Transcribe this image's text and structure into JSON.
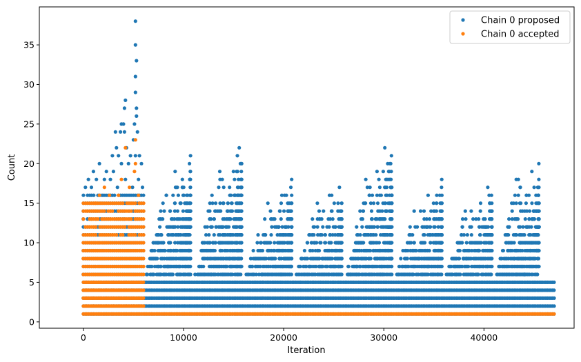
{
  "chart_data": {
    "type": "scatter",
    "xlabel": "Iteration",
    "ylabel": "Count",
    "xlim": [
      -4400,
      49000
    ],
    "ylim": [
      -0.8,
      39.8
    ],
    "xticks": [
      0,
      10000,
      20000,
      30000,
      40000
    ],
    "xtick_labels": [
      "0",
      "10000",
      "20000",
      "30000",
      "40000"
    ],
    "yticks": [
      0,
      5,
      10,
      15,
      20,
      25,
      30,
      35
    ],
    "ytick_labels": [
      "0",
      "5",
      "10",
      "15",
      "20",
      "25",
      "30",
      "35"
    ],
    "grid": false,
    "legend_position": "top-right",
    "series": [
      {
        "name": "Chain 0 proposed",
        "color": "#1f77b4",
        "bands": [
          {
            "x_range": [
              0,
              47000
            ],
            "y_values": [
              1,
              2,
              3,
              4,
              5
            ]
          },
          {
            "x_range": [
              0,
              6000
            ],
            "y_values": [
              6,
              7,
              8,
              9,
              10,
              11,
              12,
              13,
              14,
              15,
              16
            ]
          }
        ],
        "periodic_cycles": [
          {
            "x_range": [
              6000,
              10900
            ],
            "peak": 21
          },
          {
            "x_range": [
              10900,
              16000
            ],
            "peak": 22
          },
          {
            "x_range": [
              16000,
              21000
            ],
            "peak": 18
          },
          {
            "x_range": [
              21000,
              26000
            ],
            "peak": 17
          },
          {
            "x_range": [
              26000,
              31000
            ],
            "peak": 22
          },
          {
            "x_range": [
              31000,
              36000
            ],
            "peak": 18
          },
          {
            "x_range": [
              36000,
              41000
            ],
            "peak": 17
          },
          {
            "x_range": [
              41000,
              45700
            ],
            "peak": 20
          }
        ],
        "outliers": [
          {
            "x": 5200,
            "y": 38
          },
          {
            "x": 5200,
            "y": 35
          },
          {
            "x": 5300,
            "y": 33
          },
          {
            "x": 5200,
            "y": 31
          },
          {
            "x": 5200,
            "y": 29
          },
          {
            "x": 5300,
            "y": 27
          },
          {
            "x": 5300,
            "y": 26
          },
          {
            "x": 4200,
            "y": 28
          },
          {
            "x": 4100,
            "y": 27
          },
          {
            "x": 3800,
            "y": 25
          },
          {
            "x": 4000,
            "y": 25
          },
          {
            "x": 3200,
            "y": 24
          },
          {
            "x": 3700,
            "y": 24
          },
          {
            "x": 4100,
            "y": 24
          },
          {
            "x": 5100,
            "y": 25
          },
          {
            "x": 3300,
            "y": 22
          },
          {
            "x": 4300,
            "y": 22
          },
          {
            "x": 5000,
            "y": 23
          },
          {
            "x": 5400,
            "y": 24
          },
          {
            "x": 2900,
            "y": 21
          },
          {
            "x": 3500,
            "y": 21
          },
          {
            "x": 4700,
            "y": 21
          },
          {
            "x": 5200,
            "y": 21
          },
          {
            "x": 5600,
            "y": 21
          },
          {
            "x": 1000,
            "y": 19
          },
          {
            "x": 1600,
            "y": 20
          },
          {
            "x": 2300,
            "y": 19
          },
          {
            "x": 3000,
            "y": 19
          },
          {
            "x": 3800,
            "y": 20
          },
          {
            "x": 4500,
            "y": 20
          },
          {
            "x": 5800,
            "y": 20
          },
          {
            "x": 500,
            "y": 18
          },
          {
            "x": 1300,
            "y": 18
          },
          {
            "x": 2100,
            "y": 18
          },
          {
            "x": 2700,
            "y": 18
          },
          {
            "x": 3400,
            "y": 17
          },
          {
            "x": 4200,
            "y": 18
          },
          {
            "x": 4900,
            "y": 17
          },
          {
            "x": 5500,
            "y": 18
          },
          {
            "x": 5900,
            "y": 17
          },
          {
            "x": 200,
            "y": 17
          },
          {
            "x": 800,
            "y": 17
          }
        ]
      },
      {
        "name": "Chain 0 accepted",
        "color": "#ff7f0e",
        "bands": [
          {
            "x_range": [
              0,
              47000
            ],
            "y_values": [
              1
            ]
          },
          {
            "x_range": [
              0,
              6000
            ],
            "y_values": [
              2,
              3,
              4,
              5,
              6,
              7,
              8,
              9,
              10,
              11,
              12,
              13,
              14,
              15
            ]
          }
        ],
        "outliers": [
          {
            "x": 5200,
            "y": 23
          },
          {
            "x": 5200,
            "y": 20
          },
          {
            "x": 5100,
            "y": 19
          },
          {
            "x": 4200,
            "y": 22
          },
          {
            "x": 3800,
            "y": 18
          },
          {
            "x": 2100,
            "y": 17
          },
          {
            "x": 1600,
            "y": 16
          },
          {
            "x": 2600,
            "y": 16
          },
          {
            "x": 3500,
            "y": 16
          },
          {
            "x": 4600,
            "y": 17
          },
          {
            "x": 1200,
            "y": 15
          },
          {
            "x": 5500,
            "y": 16
          }
        ]
      }
    ]
  }
}
